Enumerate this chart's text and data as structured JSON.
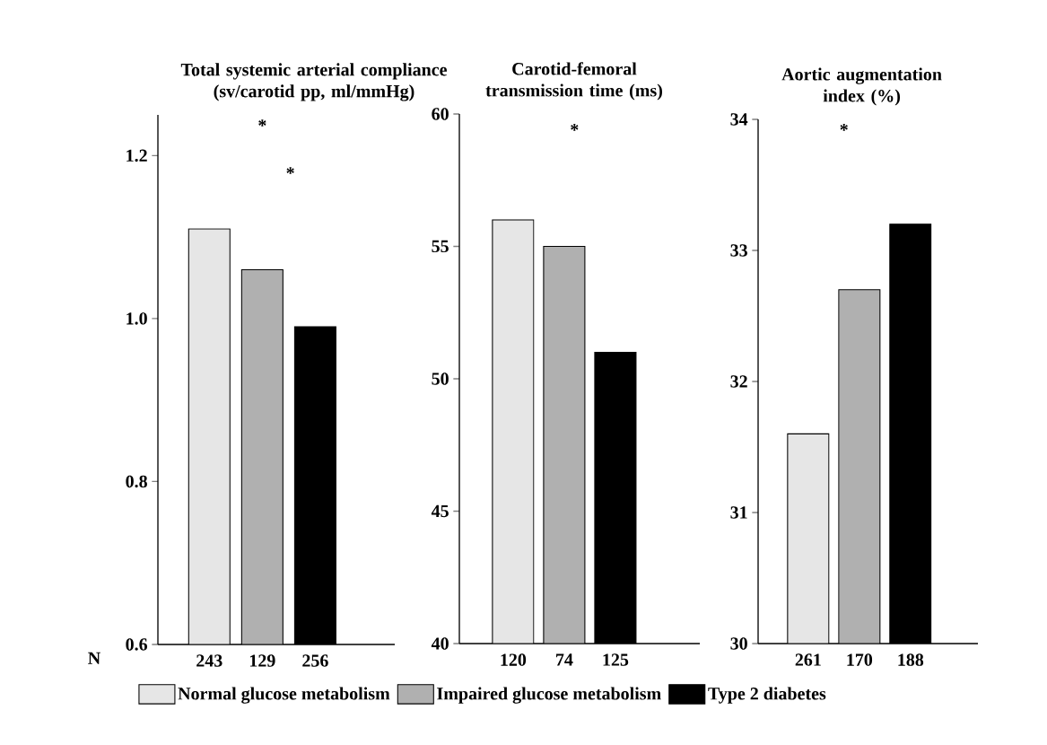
{
  "chart_data": [
    {
      "type": "bar",
      "title": "Total systemic arterial compliance (sv/carotid pp, ml/mmHg)",
      "xlabel": "N",
      "categories": [
        "243",
        "129",
        "256"
      ],
      "series": [
        {
          "name": "Normal glucose metabolism",
          "color": "#e6e6e6",
          "values": [
            1.11,
            null,
            null
          ]
        },
        {
          "name": "Impaired glucose metabolism",
          "color": "#b0b0b0",
          "values": [
            null,
            1.06,
            null
          ]
        },
        {
          "name": "Type 2 diabetes",
          "color": "#000000",
          "values": [
            null,
            null,
            0.99
          ]
        }
      ],
      "ylim": [
        0.6,
        1.25
      ],
      "yticks": [
        0.6,
        0.8,
        {
          "value": 1,
          "label": "1.0"
        },
        1.2
      ],
      "legend": "bottom",
      "annotations": [
        "*",
        "*"
      ]
    },
    {
      "type": "bar",
      "title": "Carotid-femoral transmission time (ms)",
      "categories": [
        "120",
        "74",
        "125"
      ],
      "series": [
        {
          "color": "#e6e6e6",
          "values": [
            56.0,
            null,
            null
          ]
        },
        {
          "color": "#b0b0b0",
          "values": [
            null,
            55.0,
            null
          ]
        },
        {
          "color": "#000000",
          "values": [
            null,
            null,
            51.0
          ]
        }
      ],
      "ylim": [
        40,
        60
      ],
      "yticks": [
        40,
        45,
        50,
        55,
        60
      ],
      "annotations": [
        "*"
      ]
    },
    {
      "type": "bar",
      "title": "Aortic augmentation index (%)",
      "categories": [
        "261",
        "170",
        "188"
      ],
      "series": [
        {
          "color": "#e6e6e6",
          "values": [
            31.6,
            null,
            null
          ]
        },
        {
          "color": "#b0b0b0",
          "values": [
            null,
            32.7,
            null
          ]
        },
        {
          "color": "#000000",
          "values": [
            null,
            null,
            33.2
          ]
        }
      ],
      "ylim": [
        30,
        34
      ],
      "yticks": [
        30,
        31,
        32,
        33,
        34
      ],
      "annotations": [
        "*"
      ]
    }
  ]
}
